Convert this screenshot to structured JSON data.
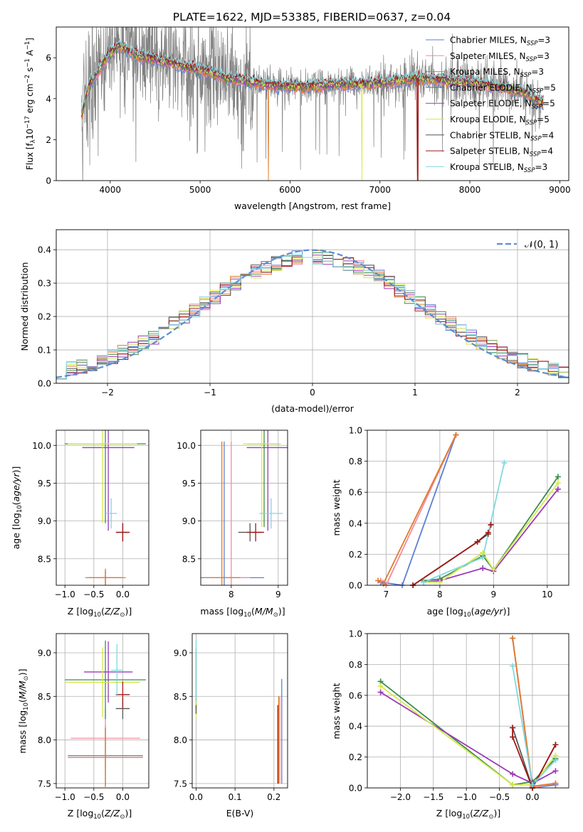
{
  "figure_title": "PLATE=1622, MJD=53385, FIBERID=0637, z=0.04",
  "colors": {
    "Chabrier MILES": "#5b7fd6",
    "Salpeter MILES": "#f08ca0",
    "Kroupa MILES": "#e07a2a",
    "Chabrier ELODIE": "#3c8c4c",
    "Salpeter ELODIE": "#9a3ab8",
    "Kroupa ELODIE": "#d8e84a",
    "Chabrier STELIB": "#555555",
    "Salpeter STELIB": "#a01818",
    "Kroupa STELIB": "#80d8e0",
    "data": "#808080",
    "normal_curve": "#5b8dd6"
  },
  "legend": [
    {
      "name": "Chabrier MILES",
      "text": "Chabrier MILES, N",
      "sub": "SSP",
      "val": "=3"
    },
    {
      "name": "Salpeter MILES",
      "text": "Salpeter MILES, N",
      "sub": "SSP",
      "val": "=3"
    },
    {
      "name": "Kroupa MILES",
      "text": "Kroupa MILES, N",
      "sub": "SSP",
      "val": "=3"
    },
    {
      "name": "Chabrier ELODIE",
      "text": "Chabrier ELODIE, N",
      "sub": "SSP",
      "val": "=5"
    },
    {
      "name": "Salpeter ELODIE",
      "text": "Salpeter ELODIE, N",
      "sub": "SSP",
      "val": "=5"
    },
    {
      "name": "Kroupa ELODIE",
      "text": "Kroupa ELODIE, N",
      "sub": "SSP",
      "val": "=5"
    },
    {
      "name": "Chabrier STELIB",
      "text": "Chabrier STELIB, N",
      "sub": "SSP",
      "val": "=4"
    },
    {
      "name": "Salpeter STELIB",
      "text": "Salpeter STELIB, N",
      "sub": "SSP",
      "val": "=4"
    },
    {
      "name": "Kroupa STELIB",
      "text": "Kroupa STELIB, N",
      "sub": "SSP",
      "val": "=3"
    }
  ],
  "chart_data": [
    {
      "id": "spectrum",
      "type": "line",
      "xlabel": "wavelength [Angstrom, rest frame]",
      "ylabel": "Flux [f_λ10^-17 erg cm^-2 s^-1 A^-1]",
      "xlim": [
        3400,
        9100
      ],
      "ylim": [
        0,
        7.5
      ],
      "xticks": [
        4000,
        5000,
        6000,
        7000,
        8000,
        9000
      ],
      "yticks": [
        0,
        2,
        4,
        6
      ],
      "model_knots": {
        "x": [
          3690,
          3760,
          3900,
          4000,
          4100,
          4300,
          4500,
          4700,
          4900,
          5100,
          5300,
          5600,
          5900,
          6200,
          6500,
          6800,
          7100,
          7400,
          7700,
          8000,
          8300,
          8600,
          8800
        ],
        "y": [
          3.3,
          4.6,
          5.6,
          6.2,
          6.6,
          6.1,
          5.9,
          5.7,
          5.5,
          5.3,
          5.0,
          4.8,
          4.6,
          4.6,
          4.7,
          4.7,
          4.8,
          5.0,
          4.9,
          4.8,
          4.6,
          4.3,
          3.8
        ]
      },
      "drops": [
        {
          "series": "Kroupa MILES",
          "x": 5760
        },
        {
          "series": "Kroupa ELODIE",
          "x": 6800
        },
        {
          "series": "Salpeter STELIB",
          "x": 7420
        }
      ],
      "data_range": [
        3680,
        8820
      ],
      "grid": false
    },
    {
      "id": "residuals",
      "type": "histogram",
      "xlabel": "(data-model)/error",
      "ylabel": "Normed distribution",
      "xlim": [
        -2.5,
        2.5
      ],
      "ylim": [
        0,
        0.46
      ],
      "xticks": [
        -2,
        -1,
        0,
        1,
        2
      ],
      "yticks": [
        0.0,
        0.1,
        0.2,
        0.3,
        0.4
      ],
      "bin_width": 0.1,
      "reference": "N(0,1)",
      "legend_label": "𝒩(0, 1)",
      "grid": true
    },
    {
      "id": "age_Z",
      "type": "errorbar",
      "xlabel": "Z [log10(Z/Z⊙)]",
      "ylabel": "age  [log10(age/yr)]",
      "xlim": [
        -1.15,
        0.45
      ],
      "ylim": [
        8.15,
        10.2
      ],
      "xticks": [
        -1.0,
        -0.5,
        0.0
      ],
      "yticks": [
        8.5,
        9.0,
        9.5,
        10.0
      ],
      "grid": true,
      "points": [
        {
          "series": "Chabrier MILES",
          "x": -0.3,
          "xerr": 0.3,
          "y": 8.25,
          "yerr": 0.1
        },
        {
          "series": "Salpeter MILES",
          "x": -0.3,
          "xerr": 0.28,
          "y": 8.25,
          "yerr": 0.08
        },
        {
          "series": "Kroupa MILES",
          "x": -0.3,
          "xerr": 0.35,
          "y": 8.25,
          "yerr": 0.12
        },
        {
          "series": "Chabrier ELODIE",
          "x": -0.3,
          "xerr": 0.7,
          "y": 10.02,
          "yerr": 1.05
        },
        {
          "series": "Salpeter ELODIE",
          "x": -0.25,
          "xerr": 0.45,
          "y": 9.97,
          "yerr": 1.1
        },
        {
          "series": "Kroupa ELODIE",
          "x": -0.35,
          "xerr": 0.6,
          "y": 10.02,
          "yerr": 1.05
        },
        {
          "series": "Chabrier STELIB",
          "x": 0.0,
          "xerr": 0.1,
          "y": 8.85,
          "yerr": 0.12
        },
        {
          "series": "Salpeter STELIB",
          "x": 0.0,
          "xerr": 0.12,
          "y": 8.85,
          "yerr": 0.12
        },
        {
          "series": "Kroupa STELIB",
          "x": -0.2,
          "xerr": 0.1,
          "y": 9.1,
          "yerr": 0.2
        }
      ]
    },
    {
      "id": "age_mass",
      "type": "errorbar",
      "xlabel": "mass [log10(M/M⊙)]",
      "ylabel": "",
      "xlim": [
        7.35,
        9.2
      ],
      "ylim": [
        8.15,
        10.2
      ],
      "xticks": [
        8,
        9
      ],
      "yticks": [
        8.5,
        9.0,
        9.5,
        10.0
      ],
      "grid": true,
      "points": [
        {
          "series": "Chabrier MILES",
          "x": 7.85,
          "xerr": 0.85,
          "y": 8.25,
          "yerr": 1.8
        },
        {
          "series": "Salpeter MILES",
          "x": 8.0,
          "xerr": 0.4,
          "y": 8.25,
          "yerr": 1.8
        },
        {
          "series": "Kroupa MILES",
          "x": 7.8,
          "xerr": 0.38,
          "y": 8.25,
          "yerr": 1.8
        },
        {
          "series": "Chabrier ELODIE",
          "x": 8.7,
          "xerr": 0.35,
          "y": 10.02,
          "yerr": 1.1
        },
        {
          "series": "Salpeter ELODIE",
          "x": 8.78,
          "xerr": 0.45,
          "y": 9.97,
          "yerr": 1.1
        },
        {
          "series": "Kroupa ELODIE",
          "x": 8.65,
          "xerr": 0.4,
          "y": 10.02,
          "yerr": 1.1
        },
        {
          "series": "Chabrier STELIB",
          "x": 8.4,
          "xerr": 0.25,
          "y": 8.85,
          "yerr": 0.12
        },
        {
          "series": "Salpeter STELIB",
          "x": 8.52,
          "xerr": 0.18,
          "y": 8.85,
          "yerr": 0.12
        },
        {
          "series": "Kroupa STELIB",
          "x": 8.85,
          "xerr": 0.25,
          "y": 9.1,
          "yerr": 0.2
        }
      ]
    },
    {
      "id": "weight_age",
      "type": "line",
      "xlabel": "age  [log10(age/yr)]",
      "ylabel": "mass weight",
      "xlim": [
        6.65,
        10.4
      ],
      "ylim": [
        0,
        1.0
      ],
      "xticks": [
        7,
        8,
        9,
        10
      ],
      "yticks": [
        0.0,
        0.2,
        0.4,
        0.6,
        0.8,
        1.0
      ],
      "grid": true,
      "series": [
        {
          "name": "Chabrier MILES",
          "x": [
            6.9,
            7.3,
            8.3
          ],
          "y": [
            0.02,
            0.0,
            0.97
          ]
        },
        {
          "name": "Salpeter MILES",
          "x": [
            6.9,
            7.0,
            8.3
          ],
          "y": [
            0.03,
            0.0,
            0.97
          ]
        },
        {
          "name": "Kroupa MILES",
          "x": [
            6.85,
            6.95,
            8.3
          ],
          "y": [
            0.03,
            0.01,
            0.97
          ]
        },
        {
          "name": "Chabrier ELODIE",
          "x": [
            7.7,
            8.0,
            8.8,
            9.0,
            10.2
          ],
          "y": [
            0.03,
            0.04,
            0.19,
            0.1,
            0.7
          ]
        },
        {
          "name": "Salpeter ELODIE",
          "x": [
            7.7,
            8.0,
            8.8,
            9.0,
            10.2
          ],
          "y": [
            0.02,
            0.03,
            0.11,
            0.09,
            0.62
          ]
        },
        {
          "name": "Kroupa ELODIE",
          "x": [
            7.7,
            8.0,
            8.8,
            9.0,
            10.2
          ],
          "y": [
            0.02,
            0.02,
            0.21,
            0.1,
            0.66
          ]
        },
        {
          "name": "Chabrier STELIB",
          "x": [
            7.5,
            8.7,
            8.9,
            8.95
          ],
          "y": [
            0.0,
            0.28,
            0.33,
            0.39
          ]
        },
        {
          "name": "Salpeter STELIB",
          "x": [
            7.5,
            8.7,
            8.9,
            8.95
          ],
          "y": [
            0.0,
            0.28,
            0.34,
            0.39
          ]
        },
        {
          "name": "Kroupa STELIB",
          "x": [
            7.7,
            8.8,
            9.2
          ],
          "y": [
            0.02,
            0.18,
            0.79
          ]
        }
      ]
    },
    {
      "id": "mass_Z",
      "type": "errorbar",
      "xlabel": "Z [log10(Z/Z⊙)]",
      "ylabel": "mass [log10(M/M⊙)]",
      "xlim": [
        -1.15,
        0.45
      ],
      "ylim": [
        7.45,
        9.22
      ],
      "xticks": [
        -1.0,
        -0.5,
        0.0
      ],
      "yticks": [
        7.5,
        8.0,
        8.5,
        9.0
      ],
      "grid": true,
      "points": [
        {
          "series": "Chabrier MILES",
          "x": -0.3,
          "xerr": 0.65,
          "y": 7.82,
          "yerr": 0.35
        },
        {
          "series": "Salpeter MILES",
          "x": -0.3,
          "xerr": 0.6,
          "y": 8.02,
          "yerr": 0.35
        },
        {
          "series": "Kroupa MILES",
          "x": -0.3,
          "xerr": 0.65,
          "y": 7.8,
          "yerr": 0.34
        },
        {
          "series": "Chabrier ELODIE",
          "x": -0.3,
          "xerr": 0.7,
          "y": 8.69,
          "yerr": 0.45
        },
        {
          "series": "Salpeter ELODIE",
          "x": -0.25,
          "xerr": 0.42,
          "y": 8.78,
          "yerr": 0.35
        },
        {
          "series": "Kroupa ELODIE",
          "x": -0.35,
          "xerr": 0.65,
          "y": 8.66,
          "yerr": 0.4
        },
        {
          "series": "Chabrier STELIB",
          "x": 0.0,
          "xerr": 0.12,
          "y": 8.36,
          "yerr": 0.12
        },
        {
          "series": "Salpeter STELIB",
          "x": 0.0,
          "xerr": 0.12,
          "y": 8.52,
          "yerr": 0.15
        },
        {
          "series": "Kroupa STELIB",
          "x": -0.1,
          "xerr": 0.1,
          "y": 8.8,
          "yerr": 0.3
        }
      ]
    },
    {
      "id": "mass_EBV",
      "type": "errorbar",
      "xlabel": "E(B-V)",
      "ylabel": "",
      "xlim": [
        -0.01,
        0.235
      ],
      "ylim": [
        7.45,
        9.22
      ],
      "xticks": [
        0.0,
        0.1,
        0.2
      ],
      "yticks": [
        7.5,
        8.0,
        8.5,
        9.0
      ],
      "grid": true,
      "points": [
        {
          "series": "Chabrier MILES",
          "x": 0.22,
          "xerr": 0,
          "y": 8.1,
          "yerr": 0.6
        },
        {
          "series": "Salpeter MILES",
          "x": 0.215,
          "xerr": 0,
          "y": 8.0,
          "yerr": 0.5
        },
        {
          "series": "Kroupa MILES",
          "x": 0.212,
          "xerr": 0,
          "y": 8.0,
          "yerr": 0.5
        },
        {
          "series": "Chabrier ELODIE",
          "x": 0.0,
          "xerr": 0,
          "y": 8.7,
          "yerr": 0.35
        },
        {
          "series": "Salpeter ELODIE",
          "x": 0.0,
          "xerr": 0,
          "y": 8.7,
          "yerr": 0.3
        },
        {
          "series": "Kroupa ELODIE",
          "x": 0.0,
          "xerr": 0,
          "y": 8.6,
          "yerr": 0.35
        },
        {
          "series": "Chabrier STELIB",
          "x": 0.0,
          "xerr": 0,
          "y": 8.35,
          "yerr": 0.05
        },
        {
          "series": "Salpeter STELIB",
          "x": 0.21,
          "xerr": 0,
          "y": 7.95,
          "yerr": 0.45
        },
        {
          "series": "Kroupa STELIB",
          "x": 0.0,
          "xerr": 0,
          "y": 8.8,
          "yerr": 0.35
        }
      ]
    },
    {
      "id": "weight_Z",
      "type": "line",
      "xlabel": "Z [log10(Z/Z⊙)]",
      "ylabel": "mass weight",
      "xlim": [
        -2.5,
        0.55
      ],
      "ylim": [
        0,
        1.0
      ],
      "xticks": [
        -2.0,
        -1.5,
        -1.0,
        -0.5,
        0.0
      ],
      "yticks": [
        0.0,
        0.2,
        0.4,
        0.6,
        0.8,
        1.0
      ],
      "grid": true,
      "series": [
        {
          "name": "Chabrier MILES",
          "x": [
            -0.3,
            0.0,
            0.35
          ],
          "y": [
            0.97,
            0.0,
            0.02
          ]
        },
        {
          "name": "Salpeter MILES",
          "x": [
            -0.3,
            0.0,
            0.35
          ],
          "y": [
            0.97,
            0.0,
            0.03
          ]
        },
        {
          "name": "Kroupa MILES",
          "x": [
            -0.3,
            0.0,
            0.35
          ],
          "y": [
            0.97,
            0.01,
            0.03
          ]
        },
        {
          "name": "Chabrier ELODIE",
          "x": [
            -2.3,
            -0.3,
            0.0,
            0.35
          ],
          "y": [
            0.69,
            0.02,
            0.04,
            0.19
          ]
        },
        {
          "name": "Salpeter ELODIE",
          "x": [
            -2.3,
            -0.3,
            0.0,
            0.35
          ],
          "y": [
            0.62,
            0.09,
            0.03,
            0.11
          ]
        },
        {
          "name": "Kroupa ELODIE",
          "x": [
            -2.3,
            -0.3,
            0.0,
            0.35
          ],
          "y": [
            0.66,
            0.02,
            0.02,
            0.21
          ]
        },
        {
          "name": "Chabrier STELIB",
          "x": [
            -0.3,
            0.0,
            0.35
          ],
          "y": [
            0.39,
            0.0,
            0.28
          ]
        },
        {
          "name": "Salpeter STELIB",
          "x": [
            -0.3,
            -0.3,
            0.0,
            0.35
          ],
          "y": [
            0.39,
            0.33,
            0.0,
            0.28
          ]
        },
        {
          "name": "Kroupa STELIB",
          "x": [
            -0.3,
            0.0,
            0.35
          ],
          "y": [
            0.79,
            0.02,
            0.18
          ]
        }
      ]
    }
  ]
}
